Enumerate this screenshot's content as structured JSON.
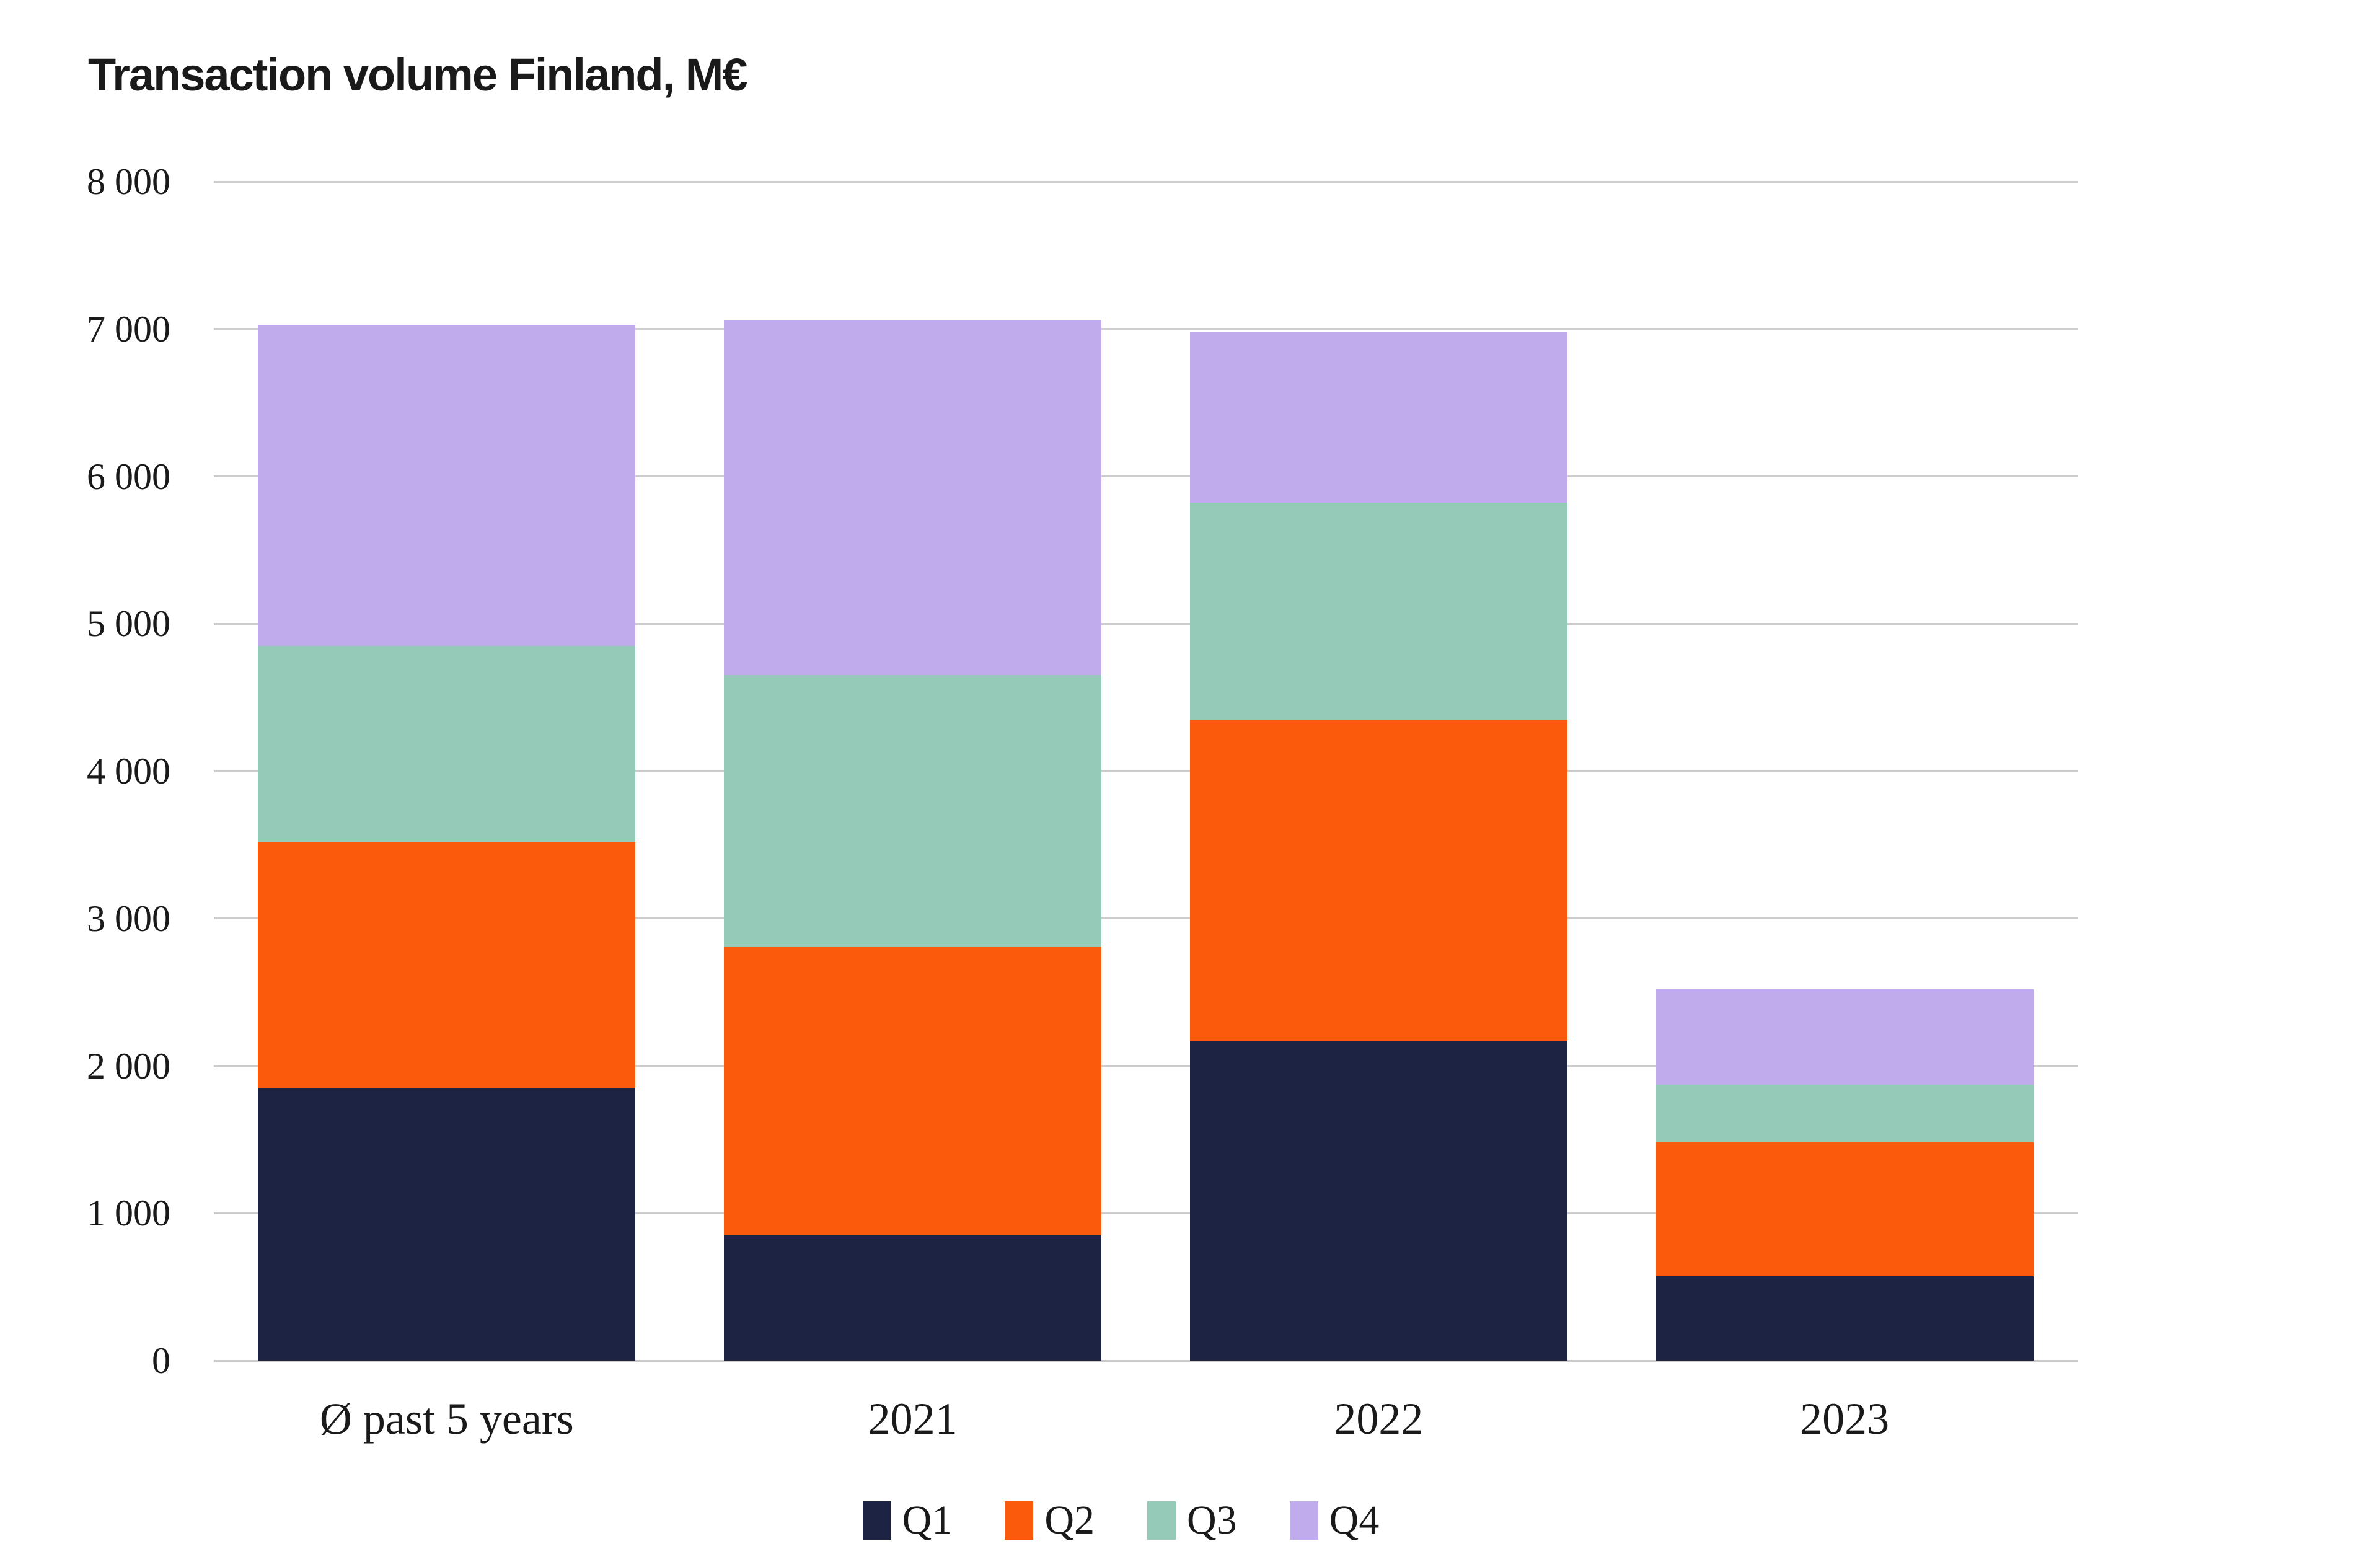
{
  "chart_data": {
    "type": "bar",
    "stacked": true,
    "title": "Transaction volume Finland, M€",
    "categories": [
      "Ø past 5 years",
      "2021",
      "2022",
      "2023"
    ],
    "series": [
      {
        "name": "Q1",
        "color": "#1d2342",
        "values": [
          1850,
          850,
          2170,
          570
        ]
      },
      {
        "name": "Q2",
        "color": "#fb5a0d",
        "values": [
          1670,
          1960,
          2180,
          910
        ]
      },
      {
        "name": "Q3",
        "color": "#95c9b8",
        "values": [
          1330,
          1840,
          1470,
          390
        ]
      },
      {
        "name": "Q4",
        "color": "#c0abec",
        "values": [
          2180,
          2410,
          1160,
          650
        ]
      }
    ],
    "ylim": [
      0,
      8000
    ],
    "ytick_step": 1000,
    "ytick_labels": [
      "0",
      "1 000",
      "2 000",
      "3 000",
      "4 000",
      "5 000",
      "6 000",
      "7 000",
      "8 000"
    ],
    "grid": "horizontal",
    "grid_color": "#cccccc",
    "text_color": "#1a1a1a",
    "legend_position": "bottom"
  }
}
